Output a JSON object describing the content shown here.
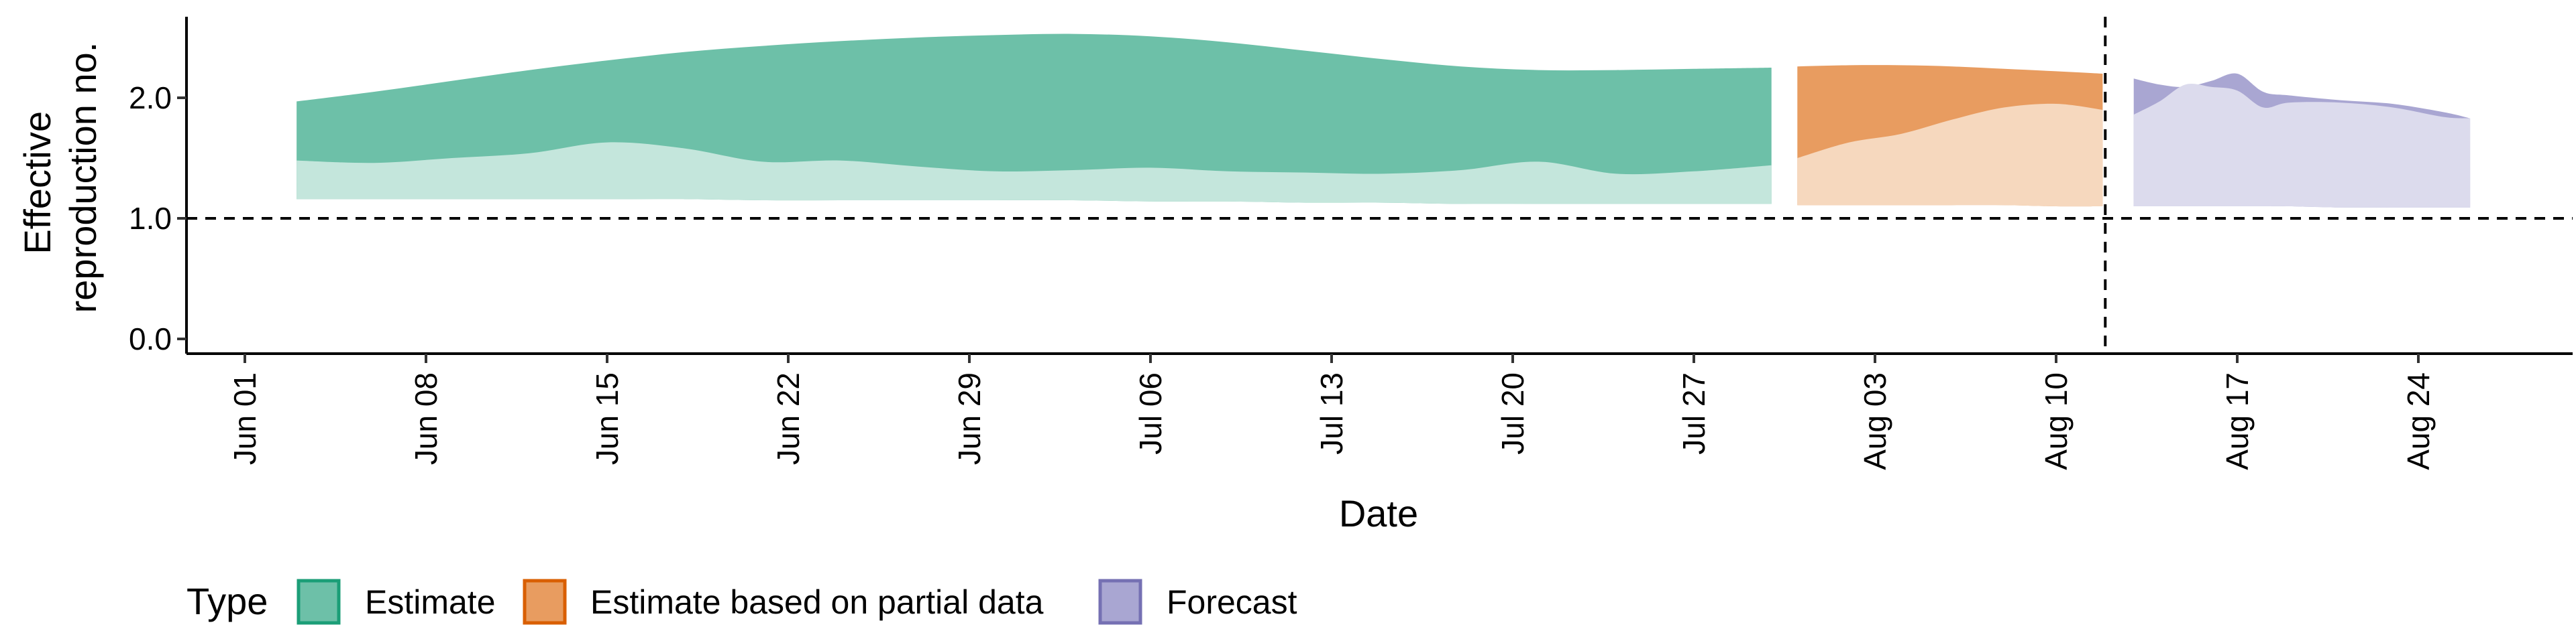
{
  "chart_data": {
    "type": "area",
    "xlabel": "Date",
    "ylabel_lines": [
      "Effective",
      "reproduction no."
    ],
    "y_ticks": [
      0.0,
      1.0,
      2.0
    ],
    "y_tick_labels": [
      "0.0",
      "1.0",
      "2.0"
    ],
    "ylim": [
      -0.1,
      2.65
    ],
    "x_range_days": [
      -3,
      61
    ],
    "x_ticks": [
      {
        "day": 0,
        "label": "Jun 01"
      },
      {
        "day": 7,
        "label": "Jun 08"
      },
      {
        "day": 14,
        "label": "Jun 15"
      },
      {
        "day": 21,
        "label": "Jun 22"
      },
      {
        "day": 28,
        "label": "Jun 29"
      },
      {
        "day": 35,
        "label": "Jul 06"
      },
      {
        "day": 42,
        "label": "Jul 13"
      },
      {
        "day": 49,
        "label": "Jul 20"
      },
      {
        "day": 56,
        "label": "Jul 27"
      },
      {
        "day": 63,
        "label": "Aug 03"
      },
      {
        "day": 70,
        "label": "Aug 10"
      },
      {
        "day": 77,
        "label": "Aug 17"
      },
      {
        "day": 84,
        "label": "Aug 24"
      }
    ],
    "reference_line_y": 1.0,
    "forecast_start_day": 71.9,
    "colors": {
      "estimate_outer": "#6DC0A8",
      "estimate_inner": "#C4E6DC",
      "partial_outer": "#E89C60",
      "partial_inner": "#F6D8BE",
      "forecast_outer": "#A9A6D2",
      "forecast_inner": "#DCDBED",
      "estimate_border": "#1B9E77",
      "partial_border": "#D95F02",
      "forecast_border": "#7570B3"
    },
    "series": [
      {
        "name": "Estimate",
        "x": [
          2,
          5,
          8,
          11,
          14,
          17,
          20,
          23,
          26,
          29,
          32,
          35,
          38,
          41,
          44,
          47,
          50,
          53,
          56,
          59
        ],
        "outer_upper": [
          1.97,
          2.05,
          2.14,
          2.23,
          2.31,
          2.38,
          2.43,
          2.47,
          2.5,
          2.52,
          2.53,
          2.51,
          2.46,
          2.39,
          2.32,
          2.26,
          2.23,
          2.23,
          2.24,
          2.25
        ],
        "inner_upper": [
          1.48,
          1.46,
          1.5,
          1.54,
          1.63,
          1.58,
          1.47,
          1.48,
          1.43,
          1.39,
          1.4,
          1.42,
          1.39,
          1.38,
          1.37,
          1.4,
          1.47,
          1.37,
          1.39,
          1.44
        ],
        "lower": [
          1.16,
          1.16,
          1.16,
          1.16,
          1.16,
          1.16,
          1.15,
          1.15,
          1.15,
          1.15,
          1.15,
          1.14,
          1.14,
          1.13,
          1.13,
          1.12,
          1.12,
          1.12,
          1.12,
          1.12
        ]
      },
      {
        "name": "Estimate based on partial data",
        "x": [
          60,
          62,
          64,
          66,
          68,
          70,
          71.8
        ],
        "outer_upper": [
          2.26,
          2.27,
          2.27,
          2.26,
          2.24,
          2.22,
          2.2
        ],
        "inner_upper": [
          1.5,
          1.63,
          1.7,
          1.82,
          1.92,
          1.95,
          1.9
        ],
        "lower": [
          1.11,
          1.11,
          1.11,
          1.11,
          1.11,
          1.1,
          1.1
        ]
      },
      {
        "name": "Forecast",
        "x": [
          73,
          74,
          75,
          76,
          77,
          78,
          79,
          81,
          83,
          85,
          86
        ],
        "outer_upper": [
          2.16,
          2.11,
          2.09,
          2.14,
          2.2,
          2.05,
          2.02,
          1.98,
          1.95,
          1.88,
          1.83
        ],
        "inner_upper": [
          1.86,
          1.97,
          2.11,
          2.09,
          2.06,
          1.92,
          1.96,
          1.96,
          1.92,
          1.84,
          1.83
        ],
        "lower": [
          1.1,
          1.1,
          1.1,
          1.1,
          1.1,
          1.1,
          1.1,
          1.09,
          1.09,
          1.09,
          1.09
        ]
      }
    ],
    "legend": {
      "title": "Type",
      "entries": [
        "Estimate",
        "Estimate based on partial data",
        "Forecast"
      ],
      "placement": "bottom-left"
    }
  }
}
